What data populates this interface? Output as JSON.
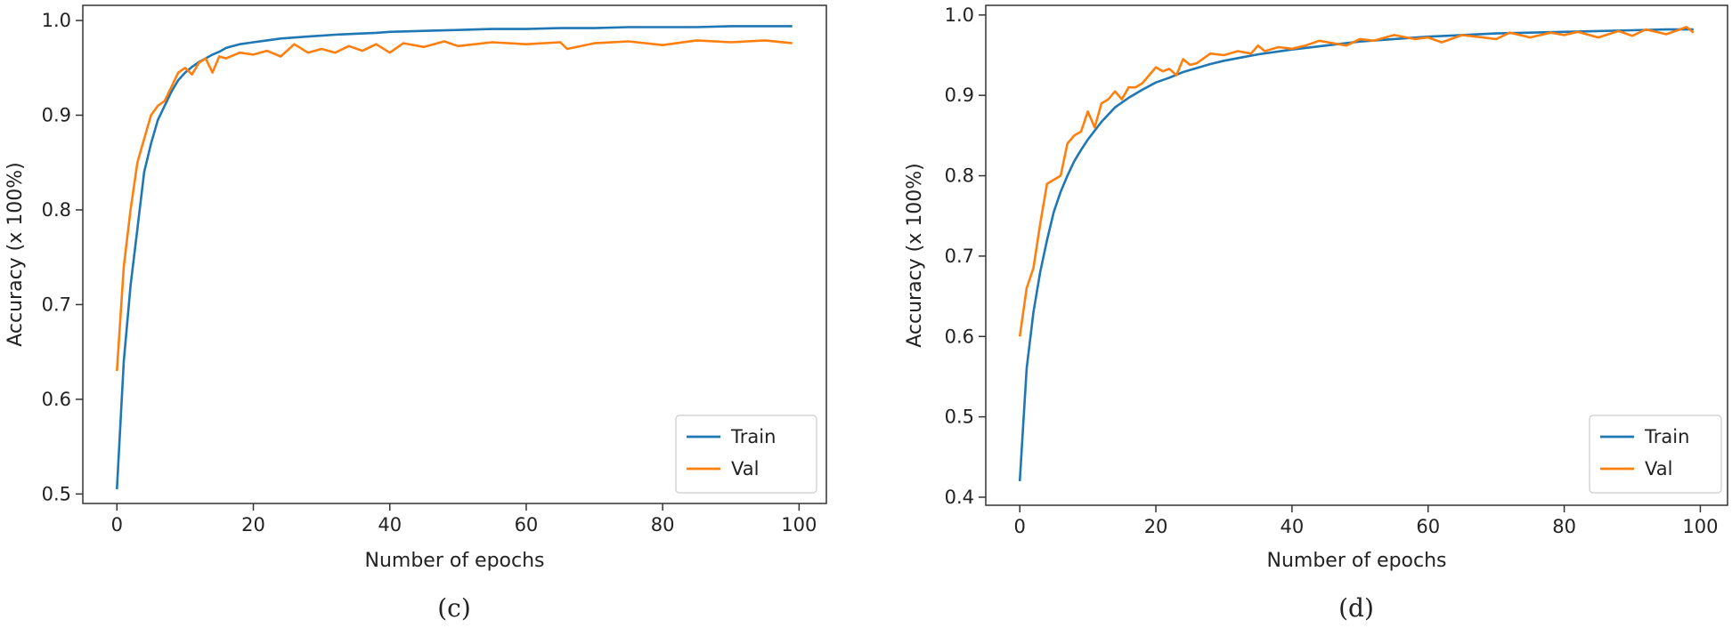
{
  "colors": {
    "train": "#1f77b4",
    "val": "#ff7f0e",
    "axis": "#333333"
  },
  "chart_data": [
    {
      "type": "line",
      "panel": "c",
      "caption": "(c)",
      "title": "",
      "xlabel": "Number of epochs",
      "ylabel": "Accuracy (x 100%)",
      "xlim": [
        -5,
        104
      ],
      "ylim": [
        0.49,
        1.016
      ],
      "xticks": [
        0,
        20,
        40,
        60,
        80,
        100
      ],
      "xtick_labels": [
        "0",
        "20",
        "40",
        "60",
        "80",
        "100"
      ],
      "yticks": [
        0.5,
        0.6,
        0.7,
        0.8,
        0.9,
        1.0
      ],
      "ytick_labels": [
        "0.5",
        "0.6",
        "0.7",
        "0.8",
        "0.9",
        "1.0"
      ],
      "legend_position": "bottom-right",
      "grid": false,
      "series": [
        {
          "name": "Train",
          "color": "#1f77b4",
          "x": [
            0,
            1,
            2,
            3,
            4,
            5,
            6,
            7,
            8,
            9,
            10,
            11,
            12,
            13,
            14,
            15,
            16,
            17,
            18,
            19,
            20,
            22,
            24,
            26,
            28,
            30,
            32,
            35,
            38,
            40,
            45,
            50,
            55,
            60,
            65,
            70,
            75,
            80,
            85,
            90,
            95,
            99
          ],
          "y": [
            0.505,
            0.64,
            0.72,
            0.78,
            0.84,
            0.87,
            0.895,
            0.91,
            0.925,
            0.937,
            0.945,
            0.951,
            0.956,
            0.96,
            0.964,
            0.967,
            0.971,
            0.973,
            0.975,
            0.976,
            0.977,
            0.979,
            0.981,
            0.982,
            0.983,
            0.984,
            0.985,
            0.986,
            0.987,
            0.988,
            0.989,
            0.99,
            0.991,
            0.991,
            0.992,
            0.992,
            0.993,
            0.993,
            0.993,
            0.994,
            0.994,
            0.994
          ]
        },
        {
          "name": "Val",
          "color": "#ff7f0e",
          "x": [
            0,
            1,
            2,
            3,
            4,
            5,
            6,
            7,
            8,
            9,
            10,
            11,
            12,
            13,
            14,
            15,
            16,
            17,
            18,
            20,
            22,
            24,
            26,
            28,
            30,
            32,
            34,
            36,
            38,
            40,
            42,
            45,
            48,
            50,
            55,
            60,
            65,
            66,
            70,
            75,
            80,
            85,
            90,
            95,
            99
          ],
          "y": [
            0.63,
            0.74,
            0.8,
            0.85,
            0.875,
            0.9,
            0.91,
            0.915,
            0.93,
            0.945,
            0.95,
            0.943,
            0.955,
            0.96,
            0.945,
            0.962,
            0.96,
            0.963,
            0.966,
            0.964,
            0.968,
            0.962,
            0.975,
            0.966,
            0.97,
            0.966,
            0.973,
            0.968,
            0.975,
            0.966,
            0.976,
            0.972,
            0.978,
            0.973,
            0.977,
            0.975,
            0.977,
            0.97,
            0.976,
            0.978,
            0.974,
            0.979,
            0.977,
            0.979,
            0.976
          ]
        }
      ]
    },
    {
      "type": "line",
      "panel": "d",
      "caption": "(d)",
      "title": "",
      "xlabel": "Number of epochs",
      "ylabel": "Accuracy (x 100%)",
      "xlim": [
        -5,
        104
      ],
      "ylim": [
        0.39,
        1.012
      ],
      "xticks": [
        0,
        20,
        40,
        60,
        80,
        100
      ],
      "xtick_labels": [
        "0",
        "20",
        "40",
        "60",
        "80",
        "100"
      ],
      "yticks": [
        0.4,
        0.5,
        0.6,
        0.7,
        0.8,
        0.9,
        1.0
      ],
      "ytick_labels": [
        "0.4",
        "0.5",
        "0.6",
        "0.7",
        "0.8",
        "0.9",
        "1.0"
      ],
      "legend_position": "bottom-right",
      "grid": false,
      "series": [
        {
          "name": "Train",
          "color": "#1f77b4",
          "x": [
            0,
            1,
            2,
            3,
            4,
            5,
            6,
            7,
            8,
            9,
            10,
            12,
            14,
            16,
            18,
            20,
            22,
            24,
            26,
            28,
            30,
            35,
            40,
            45,
            50,
            55,
            60,
            65,
            70,
            75,
            80,
            85,
            90,
            95,
            99
          ],
          "y": [
            0.42,
            0.56,
            0.63,
            0.68,
            0.72,
            0.755,
            0.78,
            0.8,
            0.818,
            0.832,
            0.845,
            0.867,
            0.885,
            0.897,
            0.907,
            0.916,
            0.922,
            0.929,
            0.934,
            0.939,
            0.943,
            0.951,
            0.957,
            0.962,
            0.967,
            0.97,
            0.973,
            0.975,
            0.977,
            0.978,
            0.979,
            0.98,
            0.981,
            0.982,
            0.982
          ]
        },
        {
          "name": "Val",
          "color": "#ff7f0e",
          "x": [
            0,
            1,
            2,
            3,
            4,
            5,
            6,
            7,
            8,
            9,
            10,
            11,
            12,
            13,
            14,
            15,
            16,
            17,
            18,
            19,
            20,
            21,
            22,
            23,
            24,
            25,
            26,
            28,
            30,
            32,
            34,
            35,
            36,
            38,
            40,
            42,
            44,
            46,
            48,
            50,
            52,
            55,
            58,
            60,
            62,
            65,
            68,
            70,
            72,
            75,
            78,
            80,
            82,
            85,
            88,
            90,
            92,
            95,
            98,
            99
          ],
          "y": [
            0.6,
            0.66,
            0.685,
            0.74,
            0.79,
            0.795,
            0.8,
            0.84,
            0.85,
            0.855,
            0.88,
            0.86,
            0.89,
            0.895,
            0.905,
            0.895,
            0.91,
            0.91,
            0.915,
            0.925,
            0.935,
            0.93,
            0.933,
            0.925,
            0.945,
            0.938,
            0.94,
            0.952,
            0.95,
            0.955,
            0.952,
            0.962,
            0.955,
            0.96,
            0.958,
            0.962,
            0.968,
            0.965,
            0.962,
            0.97,
            0.968,
            0.975,
            0.97,
            0.972,
            0.966,
            0.975,
            0.972,
            0.97,
            0.978,
            0.972,
            0.978,
            0.975,
            0.979,
            0.972,
            0.98,
            0.974,
            0.982,
            0.976,
            0.985,
            0.978
          ]
        }
      ]
    }
  ]
}
